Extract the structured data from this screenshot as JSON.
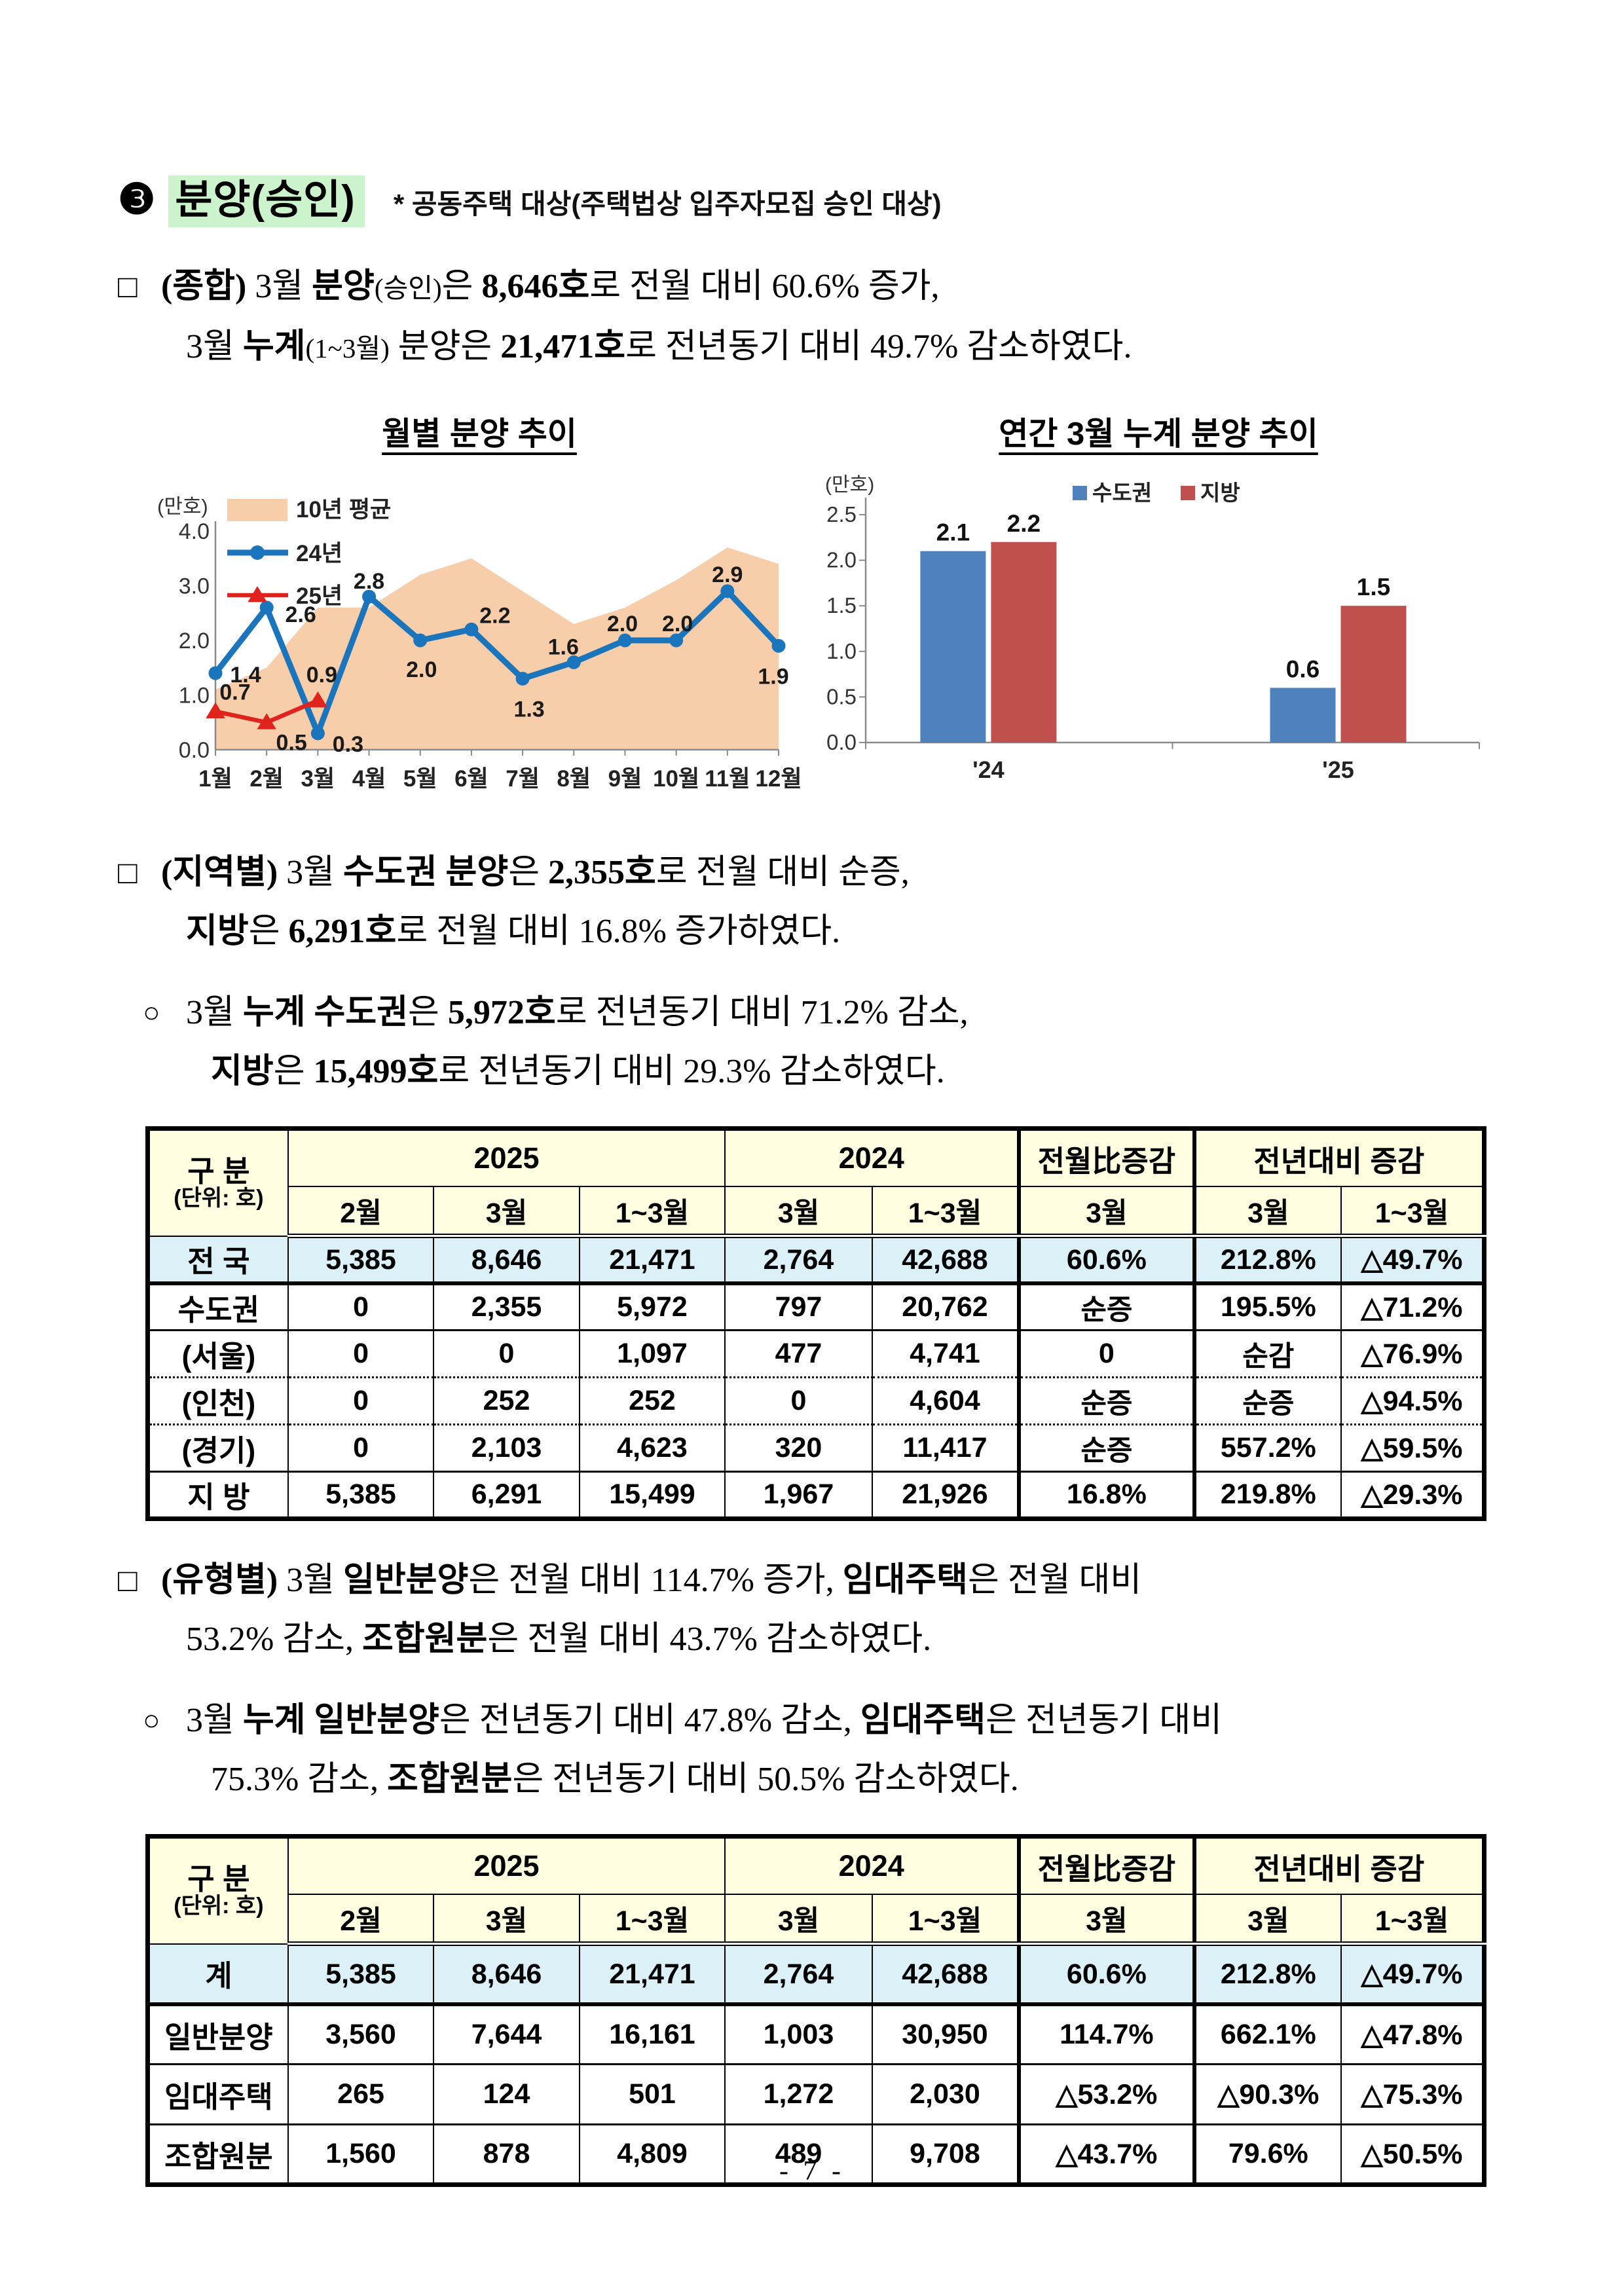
{
  "page": {
    "number_label": "- 7 -"
  },
  "header": {
    "bullet": "❸",
    "title": "분양(승인)",
    "note": "* 공동주택 대상(주택법상 입주자모집 승인 대상)",
    "highlight_color": "#ccf4cc"
  },
  "paragraphs": [
    {
      "marker": "□",
      "style": "square",
      "lines": [
        [
          {
            "t": "(종합)",
            "b": true
          },
          {
            "t": " 3월 "
          },
          {
            "t": "분양",
            "b": true
          },
          {
            "t": "(승인)",
            "small": true
          },
          {
            "t": "은 "
          },
          {
            "t": "8,646호",
            "b": true
          },
          {
            "t": "로 전월 대비 60.6% 증가,"
          }
        ],
        [
          {
            "t": "3월 "
          },
          {
            "t": "누계",
            "b": true
          },
          {
            "t": "(1~3월)",
            "small": true
          },
          {
            "t": " 분양은 "
          },
          {
            "t": "21,471호",
            "b": true
          },
          {
            "t": "로 전년동기 대비 49.7% 감소하였다."
          }
        ]
      ]
    },
    {
      "marker": "□",
      "style": "square",
      "lines": [
        [
          {
            "t": "(지역별)",
            "b": true
          },
          {
            "t": " 3월 "
          },
          {
            "t": "수도권 분양",
            "b": true
          },
          {
            "t": "은 "
          },
          {
            "t": "2,355호",
            "b": true
          },
          {
            "t": "로 전월 대비 순증,"
          }
        ],
        [
          {
            "t": "지방",
            "b": true
          },
          {
            "t": "은 "
          },
          {
            "t": "6,291호",
            "b": true
          },
          {
            "t": "로 전월 대비 16.8% 증가하였다."
          }
        ]
      ]
    },
    {
      "marker": "○",
      "style": "circle",
      "lines": [
        [
          {
            "t": "3월 "
          },
          {
            "t": "누계 수도권",
            "b": true
          },
          {
            "t": "은 "
          },
          {
            "t": "5,972호",
            "b": true
          },
          {
            "t": "로 전년동기 대비 71.2% 감소,"
          }
        ],
        [
          {
            "t": "지방",
            "b": true
          },
          {
            "t": "은 "
          },
          {
            "t": "15,499호",
            "b": true
          },
          {
            "t": "로 전년동기 대비 29.3% 감소하였다."
          }
        ]
      ]
    },
    {
      "marker": "□",
      "style": "square",
      "lines": [
        [
          {
            "t": "(유형별)",
            "b": true
          },
          {
            "t": " 3월 "
          },
          {
            "t": "일반분양",
            "b": true
          },
          {
            "t": "은 전월 대비 114.7% 증가, "
          },
          {
            "t": "임대주택",
            "b": true
          },
          {
            "t": "은 전월 대비"
          }
        ],
        [
          {
            "t": "53.2% 감소, "
          },
          {
            "t": "조합원분",
            "b": true
          },
          {
            "t": "은 전월 대비 43.7% 감소하였다."
          }
        ]
      ]
    },
    {
      "marker": "○",
      "style": "circle",
      "lines": [
        [
          {
            "t": "3월 "
          },
          {
            "t": "누계 일반분양",
            "b": true
          },
          {
            "t": "은 전년동기 대비 47.8% 감소, "
          },
          {
            "t": "임대주택",
            "b": true
          },
          {
            "t": "은 전년동기 대비"
          }
        ],
        [
          {
            "t": "75.3% 감소, "
          },
          {
            "t": "조합원분",
            "b": true
          },
          {
            "t": "은 전년동기 대비 50.5% 감소하였다."
          }
        ]
      ]
    }
  ],
  "chart_data": [
    {
      "type": "line",
      "title": "월별 분양 추이",
      "unit_label": "(만호)",
      "categories": [
        "1월",
        "2월",
        "3월",
        "4월",
        "5월",
        "6월",
        "7월",
        "8월",
        "9월",
        "10월",
        "11월",
        "12월"
      ],
      "ylim": [
        0,
        4.0
      ],
      "yticks": [
        0.0,
        1.0,
        2.0,
        3.0,
        4.0
      ],
      "grid": false,
      "legend_position": "top-left",
      "series": [
        {
          "name": "10년 평균",
          "kind": "area",
          "color": "#f8cda9",
          "values": [
            1.1,
            1.5,
            2.6,
            2.6,
            3.2,
            3.5,
            2.9,
            2.3,
            2.6,
            3.1,
            3.7,
            3.4
          ]
        },
        {
          "name": "24년",
          "kind": "line",
          "marker": "circle",
          "color": "#1b75bc",
          "values": [
            1.4,
            2.6,
            0.3,
            2.8,
            2.0,
            2.2,
            1.3,
            1.6,
            2.0,
            2.0,
            2.9,
            1.9
          ],
          "labels": [
            "1.4",
            "2.6",
            "0.3",
            "2.8",
            "2.0",
            "2.2",
            "1.3",
            "1.6",
            "2.0",
            "2.0",
            "2.9",
            "1.9"
          ]
        },
        {
          "name": "25년",
          "kind": "line",
          "marker": "triangle",
          "color": "#e0231c",
          "values": [
            0.7,
            0.5,
            0.9
          ],
          "labels": [
            "0.7",
            "0.5",
            "0.9"
          ]
        }
      ]
    },
    {
      "type": "bar",
      "title": "연간 3월 누계 분양 추이",
      "unit_label": "(만호)",
      "categories": [
        "'24",
        "'25"
      ],
      "ylim": [
        0,
        2.5
      ],
      "yticks": [
        0.0,
        0.5,
        1.0,
        1.5,
        2.0,
        2.5
      ],
      "grid": false,
      "legend_position": "top-center",
      "series": [
        {
          "name": "수도권",
          "color": "#4f81bd",
          "values": [
            2.1,
            0.6
          ],
          "labels": [
            "2.1",
            "0.6"
          ]
        },
        {
          "name": "지방",
          "color": "#c0504d",
          "values": [
            2.2,
            1.5
          ],
          "labels": [
            "2.2",
            "1.5"
          ]
        }
      ]
    }
  ],
  "tables": [
    {
      "id": "region",
      "corner": [
        "구 분",
        "(단위: 호)"
      ],
      "groups": [
        {
          "label": "2025",
          "span": 3
        },
        {
          "label": "2024",
          "span": 2
        },
        {
          "label": "전월比증감",
          "span": 1,
          "thick_left": true
        },
        {
          "label": "전년대비 증감",
          "span": 2,
          "thick_left": true
        }
      ],
      "sub_headers": [
        "2월",
        "3월",
        "1~3월",
        "3월",
        "1~3월",
        "3월",
        "3월",
        "1~3월"
      ],
      "col_widths_pct": [
        10.5,
        10.9,
        10.9,
        10.9,
        11.0,
        11.0,
        13.1,
        11.0,
        10.7
      ],
      "rows": [
        {
          "label": "전 국",
          "highlight": true,
          "sep": "thick",
          "cells": [
            "5,385",
            "8,646",
            "21,471",
            "2,764",
            "42,688",
            "60.6%",
            "212.8%",
            "△49.7%"
          ]
        },
        {
          "label": "수도권",
          "sep": "solid",
          "cells": [
            "0",
            "2,355",
            "5,972",
            "797",
            "20,762",
            "순증",
            "195.5%",
            "△71.2%"
          ]
        },
        {
          "label": "(서울)",
          "sep": "dotted",
          "cells": [
            "0",
            "0",
            "1,097",
            "477",
            "4,741",
            "0",
            "순감",
            "△76.9%"
          ]
        },
        {
          "label": "(인천)",
          "sep": "dotted",
          "cells": [
            "0",
            "252",
            "252",
            "0",
            "4,604",
            "순증",
            "순증",
            "△94.5%"
          ]
        },
        {
          "label": "(경기)",
          "sep": "solid",
          "cells": [
            "0",
            "2,103",
            "4,623",
            "320",
            "11,417",
            "순증",
            "557.2%",
            "△59.5%"
          ]
        },
        {
          "label": "지 방",
          "cells": [
            "5,385",
            "6,291",
            "15,499",
            "1,967",
            "21,926",
            "16.8%",
            "219.8%",
            "△29.3%"
          ]
        }
      ]
    },
    {
      "id": "type",
      "corner": [
        "구 분",
        "(단위: 호)"
      ],
      "groups": [
        {
          "label": "2025",
          "span": 3
        },
        {
          "label": "2024",
          "span": 2
        },
        {
          "label": "전월比증감",
          "span": 1,
          "thick_left": true
        },
        {
          "label": "전년대비 증감",
          "span": 2,
          "thick_left": true
        }
      ],
      "sub_headers": [
        "2월",
        "3월",
        "1~3월",
        "3월",
        "1~3월",
        "3월",
        "3월",
        "1~3월"
      ],
      "col_widths_pct": [
        10.5,
        10.9,
        10.9,
        10.9,
        11.0,
        11.0,
        13.1,
        11.0,
        10.7
      ],
      "rows": [
        {
          "label": "계",
          "highlight": true,
          "sep": "thick",
          "cells": [
            "5,385",
            "8,646",
            "21,471",
            "2,764",
            "42,688",
            "60.6%",
            "212.8%",
            "△49.7%"
          ]
        },
        {
          "label": "일반분양",
          "sep": "solid",
          "cells": [
            "3,560",
            "7,644",
            "16,161",
            "1,003",
            "30,950",
            "114.7%",
            "662.1%",
            "△47.8%"
          ]
        },
        {
          "label": "임대주택",
          "sep": "solid",
          "cells": [
            "265",
            "124",
            "501",
            "1,272",
            "2,030",
            "△53.2%",
            "△90.3%",
            "△75.3%"
          ]
        },
        {
          "label": "조합원분",
          "cells": [
            "1,560",
            "878",
            "4,809",
            "489",
            "9,708",
            "△43.7%",
            "79.6%",
            "△50.5%"
          ]
        }
      ]
    }
  ],
  "colors": {
    "table_header_bg": "#fffee1",
    "table_highlight_bg": "#dcf0f7",
    "axis": "#8a8a8a",
    "area_fill": "#f8cda9",
    "line_2024": "#1b75bc",
    "line_2025": "#e0231c",
    "bar_capital": "#4f81bd",
    "bar_province": "#c0504d",
    "title_highlight": "#ccf4cc"
  }
}
